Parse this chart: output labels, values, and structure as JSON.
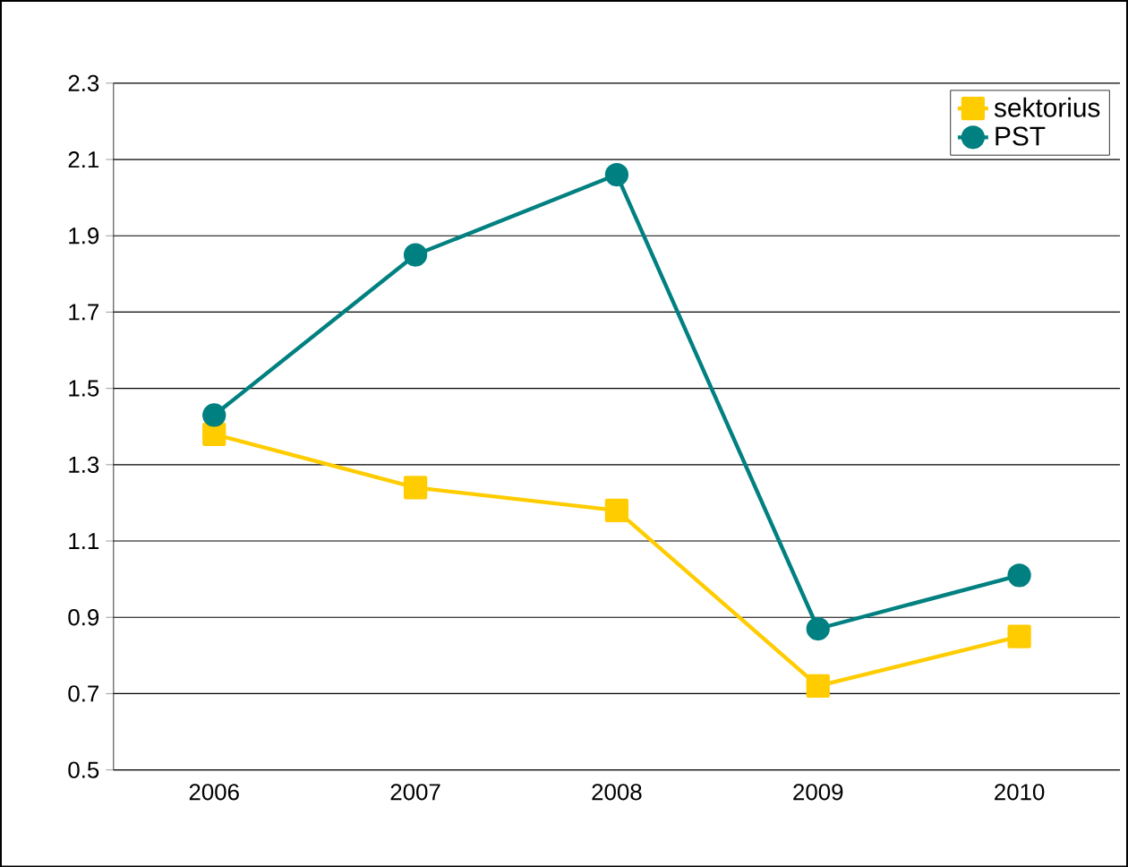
{
  "chart_data": {
    "type": "line",
    "categories": [
      "2006",
      "2007",
      "2008",
      "2009",
      "2010"
    ],
    "series": [
      {
        "name": "sektorius",
        "color": "#ffcc00",
        "marker": "square",
        "values": [
          1.38,
          1.24,
          1.18,
          0.72,
          0.85
        ]
      },
      {
        "name": "PST",
        "color": "#008080",
        "marker": "circle",
        "values": [
          1.43,
          1.85,
          2.06,
          0.87,
          1.01
        ]
      }
    ],
    "ylim": [
      0.5,
      2.3
    ],
    "yticks": [
      0.5,
      0.7,
      0.9,
      1.1,
      1.3,
      1.5,
      1.7,
      1.9,
      2.1,
      2.3
    ],
    "grid": "y",
    "legend": "top right",
    "line_style": "solid"
  }
}
